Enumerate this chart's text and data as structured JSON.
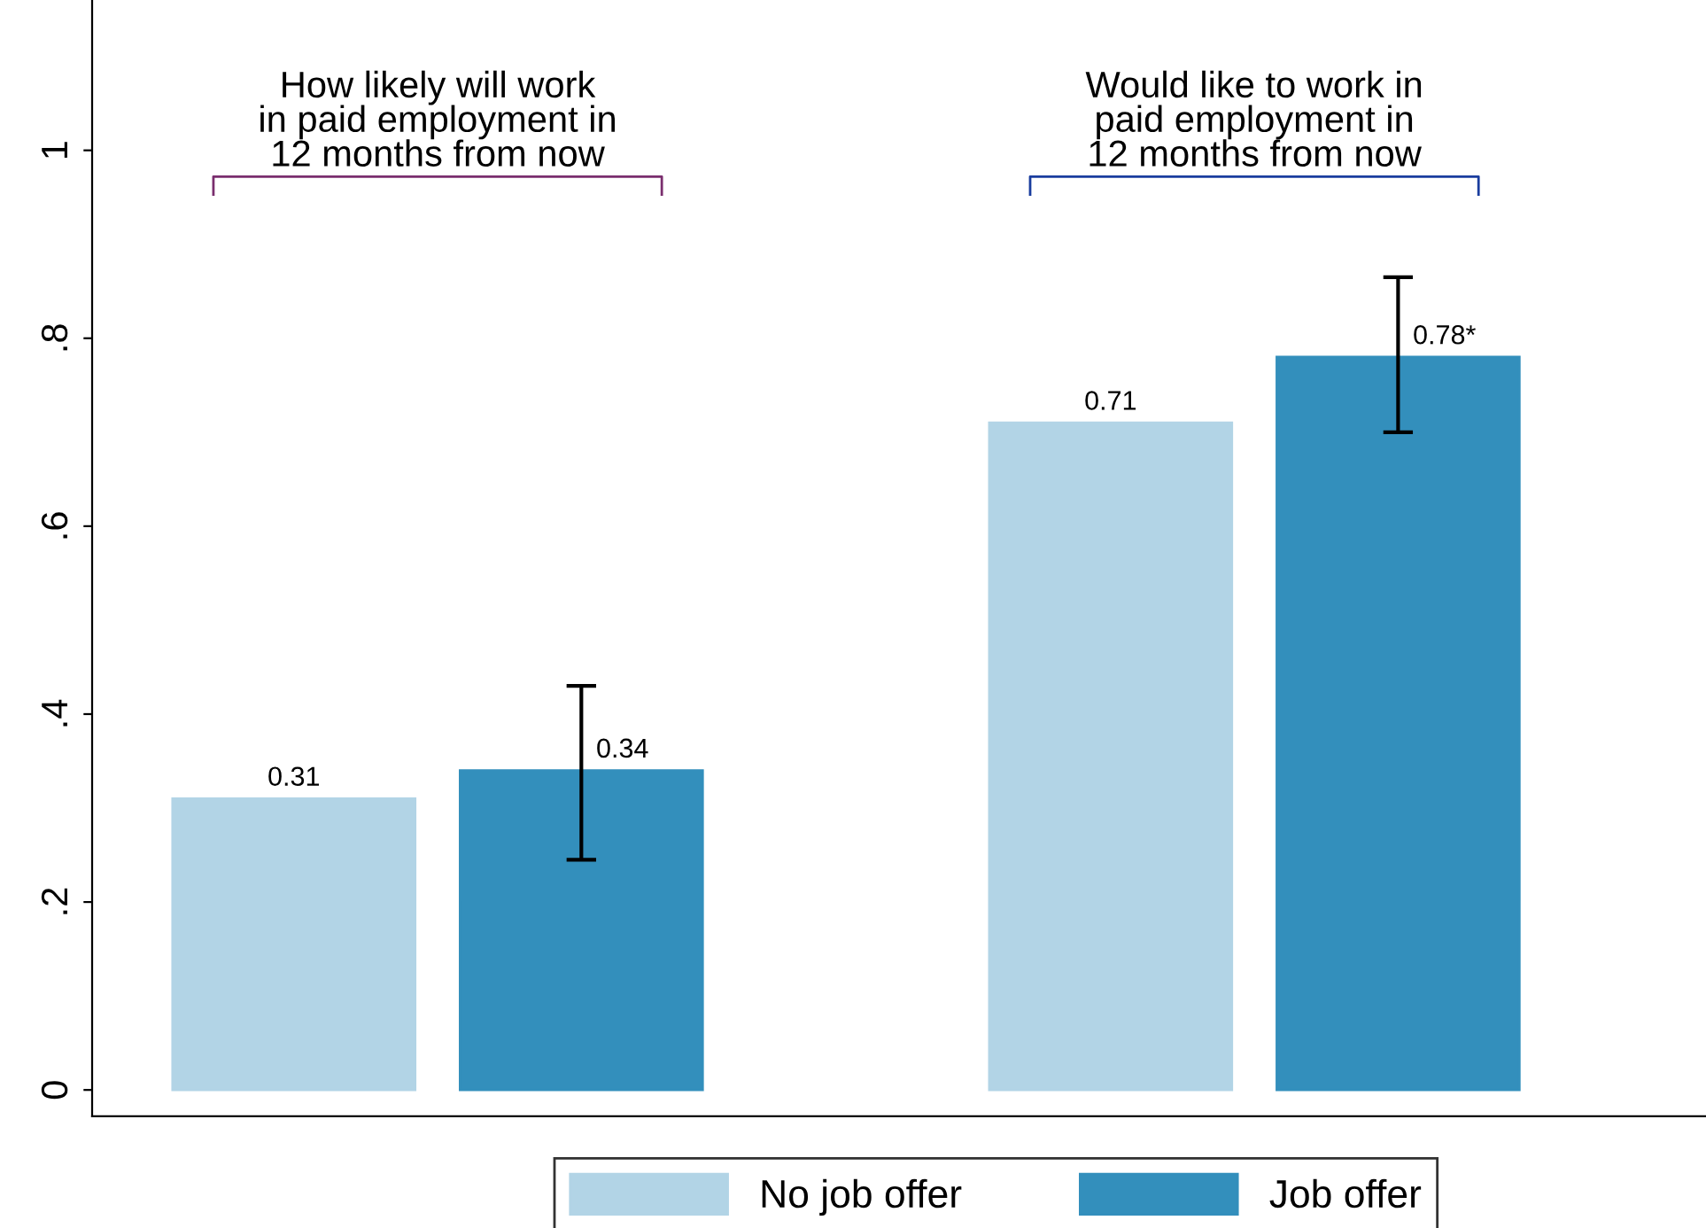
{
  "chart_data": {
    "type": "bar",
    "categories": [
      "How likely will work\nin paid employment in\n12 months from now",
      "Would like to work in\npaid employment in\n12 months from now"
    ],
    "series": [
      {
        "name": "No job offer",
        "color": "#b2d4e6",
        "values": [
          0.31,
          0.71
        ],
        "value_labels": [
          "0.31",
          "0.71"
        ]
      },
      {
        "name": "Job offer",
        "color": "#338fbc",
        "values": [
          0.34,
          0.78
        ],
        "errors": [
          [
            0.245,
            0.43
          ],
          [
            0.7,
            0.865
          ]
        ],
        "value_labels": [
          "0.34",
          "0.78*"
        ]
      }
    ],
    "ylim": [
      -0.028,
      1.16
    ],
    "yticks": [
      0,
      {
        "value": 0.2,
        "label": ".2"
      },
      {
        "value": 0.4,
        "label": ".4"
      },
      {
        "value": 0.6,
        "label": ".6"
      },
      {
        "value": 0.8,
        "label": ".8"
      },
      1
    ],
    "grid": false,
    "legend": "bottom"
  }
}
